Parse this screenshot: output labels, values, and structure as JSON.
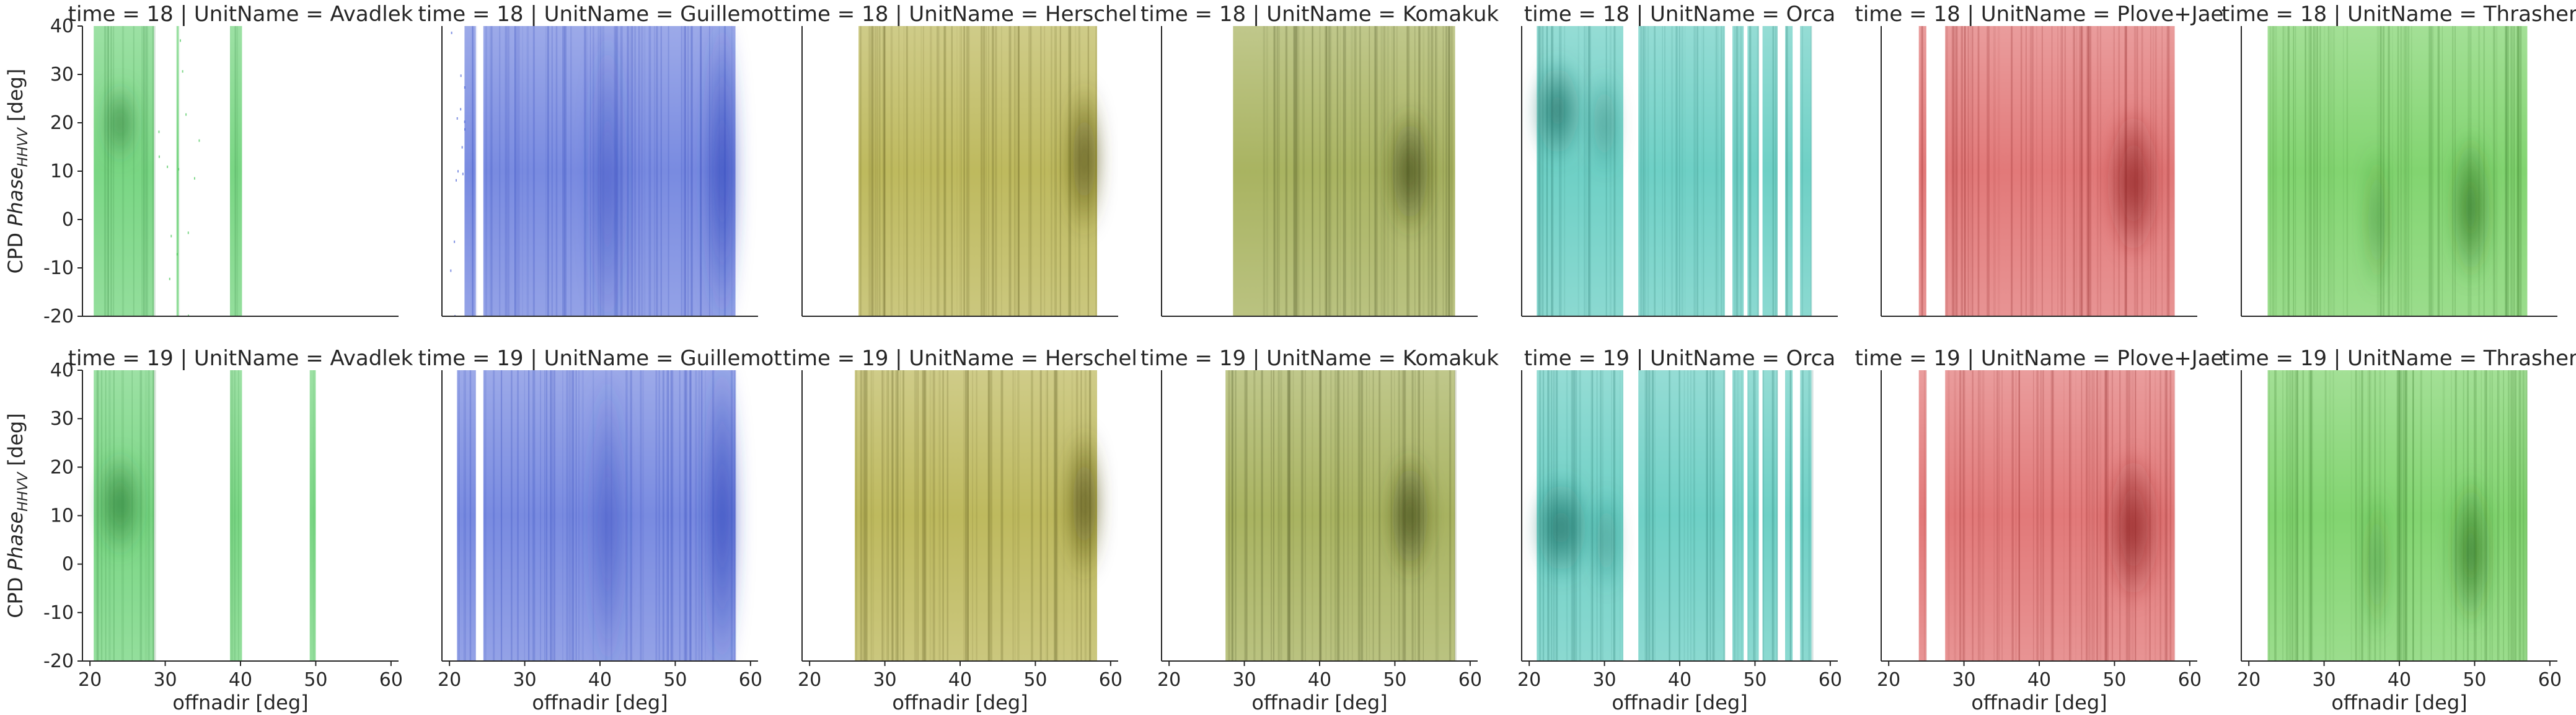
{
  "chart_data": {
    "type": "heatmap",
    "facet_row_label": "time",
    "facet_col_label": "UnitName",
    "rows": [
      18,
      19
    ],
    "columns": [
      "Avadlek",
      "Guillemot",
      "Herschel",
      "Komakuk",
      "Orca",
      "Plove+Jae",
      "Thrasher"
    ],
    "panel_titles": [
      [
        "time = 18 | UnitName = Avadlek",
        "time = 18 | UnitName = Guillemot",
        "time = 18 | UnitName = Herschel",
        "time = 18 | UnitName = Komakuk",
        "time = 18 | UnitName = Orca",
        "time = 18 | UnitName = Plove+Jae",
        "time = 18 | UnitName = Thrasher"
      ],
      [
        "time = 19 | UnitName = Avadlek",
        "time = 19 | UnitName = Guillemot",
        "time = 19 | UnitName = Herschel",
        "time = 19 | UnitName = Komakuk",
        "time = 19 | UnitName = Orca",
        "time = 19 | UnitName = Plove+Jae",
        "time = 19 | UnitName = Thrasher"
      ]
    ],
    "xlabel": "offnadir [deg]",
    "ylabel_prefix": "CPD ",
    "ylabel_italic": "Phase",
    "ylabel_sub": "HHVV",
    "ylabel_suffix": " [deg]",
    "xlim": [
      19,
      61
    ],
    "ylim": [
      -20,
      40
    ],
    "xticks": [
      20,
      30,
      40,
      50,
      60
    ],
    "yticks": [
      -20,
      -10,
      0,
      10,
      20,
      30,
      40
    ],
    "grid": false,
    "colors": {
      "Avadlek": "#4cc85a",
      "Guillemot": "#4c64d6",
      "Herschel": "#a8a228",
      "Komakuk": "#8c9a2c",
      "Orca": "#3ec0b2",
      "Plove+Jae": "#d84c4c",
      "Thrasher": "#58c640"
    },
    "dark_colors": {
      "Avadlek": "#2a7a34",
      "Guillemot": "#2a40b8",
      "Herschel": "#4a4610",
      "Komakuk": "#3a4216",
      "Orca": "#1a6a60",
      "Plove+Jae": "#8a2020",
      "Thrasher": "#2a6a1c"
    },
    "density": {
      "18": {
        "Avadlek": {
          "bands": [
            [
              20.5,
              28.5
            ],
            [
              38.6,
              40.2
            ],
            [
              31.5,
              31.8
            ]
          ],
          "mode_x": [
            23,
            25
          ],
          "mode_y": [
            15,
            25
          ],
          "scatter_ranges": [
            [
              29,
              35
            ]
          ]
        },
        "Guillemot": {
          "bands": [
            [
              22,
              23.5
            ],
            [
              24.5,
              58
            ]
          ],
          "mode_x": [
            55,
            57.5
          ],
          "mode_y": [
            -20,
            40
          ],
          "secondary_mode_x": [
            39,
            43
          ],
          "scatter_ranges": [
            [
              20,
              22
            ]
          ]
        },
        "Herschel": {
          "bands": [
            [
              26.5,
              58.2
            ]
          ],
          "mode_x": [
            55,
            58
          ],
          "mode_y": [
            0,
            25
          ]
        },
        "Komakuk": {
          "bands": [
            [
              28.5,
              58
            ]
          ],
          "mode_x": [
            50,
            54
          ],
          "mode_y": [
            0,
            20
          ]
        },
        "Orca": {
          "bands": [
            [
              21,
              32.5
            ],
            [
              34.5,
              46
            ],
            [
              47,
              48.5
            ],
            [
              49,
              50.5
            ],
            [
              51,
              53
            ],
            [
              54,
              55
            ],
            [
              56,
              57.5
            ]
          ],
          "mode_x": [
            21.5,
            26
          ],
          "mode_y": [
            15,
            30
          ],
          "secondary_mode_x": [
            28.5,
            31.5
          ]
        },
        "Plove+Jae": {
          "bands": [
            [
              24,
              25
            ],
            [
              27.5,
              58
            ]
          ],
          "mode_x": [
            50,
            55
          ],
          "mode_y": [
            -5,
            20
          ]
        },
        "Thrasher": {
          "bands": [
            [
              22.5,
              57
            ]
          ],
          "mode_x": [
            48,
            51
          ],
          "mode_y": [
            -10,
            15
          ],
          "secondary_mode_x": [
            36,
            38
          ]
        }
      },
      "19": {
        "Avadlek": {
          "bands": [
            [
              20.5,
              28.5
            ],
            [
              38.6,
              40.2
            ],
            [
              49.2,
              50
            ]
          ],
          "mode_x": [
            22,
            26
          ],
          "mode_y": [
            5,
            20
          ]
        },
        "Guillemot": {
          "bands": [
            [
              21,
              23.5
            ],
            [
              24.5,
              58
            ]
          ],
          "mode_x": [
            55,
            57.5
          ],
          "mode_y": [
            -20,
            40
          ],
          "secondary_mode_x": [
            39,
            43
          ]
        },
        "Herschel": {
          "bands": [
            [
              26,
              58.2
            ]
          ],
          "mode_x": [
            55,
            58
          ],
          "mode_y": [
            0,
            25
          ]
        },
        "Komakuk": {
          "bands": [
            [
              27.5,
              58
            ]
          ],
          "mode_x": [
            50,
            54
          ],
          "mode_y": [
            0,
            20
          ]
        },
        "Orca": {
          "bands": [
            [
              21,
              32.5
            ],
            [
              34.5,
              46
            ],
            [
              47,
              48.5
            ],
            [
              49,
              50.5
            ],
            [
              51,
              53
            ],
            [
              54,
              55
            ],
            [
              56,
              57.5
            ]
          ],
          "mode_x": [
            21.5,
            27
          ],
          "mode_y": [
            0,
            15
          ],
          "secondary_mode_x": [
            29,
            31.5
          ]
        },
        "Plove+Jae": {
          "bands": [
            [
              24,
              25
            ],
            [
              27.5,
              58
            ]
          ],
          "mode_x": [
            50,
            55
          ],
          "mode_y": [
            -5,
            20
          ]
        },
        "Thrasher": {
          "bands": [
            [
              22.5,
              57
            ]
          ],
          "mode_x": [
            48,
            51
          ],
          "mode_y": [
            -10,
            15
          ],
          "secondary_mode_x": [
            36,
            38
          ]
        }
      }
    }
  }
}
